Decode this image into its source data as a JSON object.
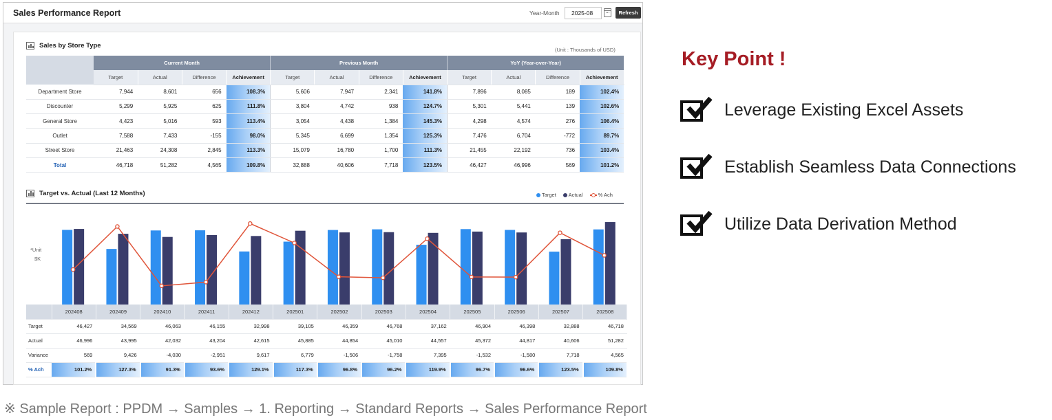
{
  "header": {
    "title": "Sales Performance Report",
    "ym_label": "Year-Month",
    "ym_value": "2025-08",
    "refresh_label": "Refresh"
  },
  "store_section": {
    "title": "Sales by Store Type",
    "unit": "(Unit : Thousands of USD)",
    "groups": [
      "Current Month",
      "Previous Month",
      "YoY (Year-over-Year)"
    ],
    "subheaders": [
      "Target",
      "Actual",
      "Difference",
      "Achievement"
    ],
    "rows": [
      {
        "label": "Department Store",
        "cells": [
          "7,944",
          "8,601",
          "656",
          "108.3%",
          "5,606",
          "7,947",
          "2,341",
          "141.8%",
          "7,896",
          "8,085",
          "189",
          "102.4%"
        ]
      },
      {
        "label": "Discounter",
        "cells": [
          "5,299",
          "5,925",
          "625",
          "111.8%",
          "3,804",
          "4,742",
          "938",
          "124.7%",
          "5,301",
          "5,441",
          "139",
          "102.6%"
        ]
      },
      {
        "label": "General Store",
        "cells": [
          "4,423",
          "5,016",
          "593",
          "113.4%",
          "3,054",
          "4,438",
          "1,384",
          "145.3%",
          "4,298",
          "4,574",
          "276",
          "106.4%"
        ]
      },
      {
        "label": "Outlet",
        "cells": [
          "7,588",
          "7,433",
          "-155",
          "98.0%",
          "5,345",
          "6,699",
          "1,354",
          "125.3%",
          "7,476",
          "6,704",
          "-772",
          "89.7%"
        ]
      },
      {
        "label": "Street Store",
        "cells": [
          "21,463",
          "24,308",
          "2,845",
          "113.3%",
          "15,079",
          "16,780",
          "1,700",
          "111.3%",
          "21,455",
          "22,192",
          "736",
          "103.4%"
        ]
      },
      {
        "label": "Total",
        "cells": [
          "46,718",
          "51,282",
          "4,565",
          "109.8%",
          "32,888",
          "40,606",
          "7,718",
          "123.5%",
          "46,427",
          "46,996",
          "569",
          "101.2%"
        ]
      }
    ]
  },
  "chart_section": {
    "title": "Target vs. Actual (Last 12 Months)",
    "unit_label": "*Unit",
    "unit_value": "$K",
    "legend": [
      "Target",
      "Actual",
      "% Ach"
    ],
    "colors": {
      "target": "#2f8ff0",
      "actual": "#3a3d6b",
      "ach": "#e0553a"
    }
  },
  "chart_data": {
    "type": "bar",
    "categories": [
      "202408",
      "202409",
      "202410",
      "202411",
      "202412",
      "202501",
      "202502",
      "202503",
      "202504",
      "202505",
      "202506",
      "202507",
      "202508"
    ],
    "series": [
      {
        "name": "Target",
        "values": [
          46427,
          34569,
          46063,
          46155,
          32998,
          39105,
          46359,
          46768,
          37162,
          46904,
          46398,
          32888,
          46718
        ]
      },
      {
        "name": "Actual",
        "values": [
          46996,
          43995,
          42032,
          43204,
          42615,
          45885,
          44854,
          45010,
          44557,
          45372,
          44817,
          40606,
          51282
        ]
      },
      {
        "name": "% Ach",
        "values": [
          101.2,
          127.3,
          91.3,
          93.6,
          129.1,
          117.3,
          96.8,
          96.2,
          119.9,
          96.7,
          96.6,
          123.5,
          109.8
        ]
      }
    ],
    "rows": [
      {
        "label": "Target",
        "values": [
          "46,427",
          "34,569",
          "46,063",
          "46,155",
          "32,998",
          "39,105",
          "46,359",
          "46,768",
          "37,162",
          "46,904",
          "46,398",
          "32,888",
          "46,718"
        ]
      },
      {
        "label": "Actual",
        "values": [
          "46,996",
          "43,995",
          "42,032",
          "43,204",
          "42,615",
          "45,885",
          "44,854",
          "45,010",
          "44,557",
          "45,372",
          "44,817",
          "40,606",
          "51,282"
        ]
      },
      {
        "label": "Variance",
        "values": [
          "569",
          "9,426",
          "-4,030",
          "-2,951",
          "9,617",
          "6,779",
          "-1,506",
          "-1,758",
          "7,395",
          "-1,532",
          "-1,580",
          "7,718",
          "4,565"
        ]
      },
      {
        "label": "% Ach",
        "values": [
          "101.2%",
          "127.3%",
          "91.3%",
          "93.6%",
          "129.1%",
          "117.3%",
          "96.8%",
          "96.2%",
          "119.9%",
          "96.7%",
          "96.6%",
          "123.5%",
          "109.8%"
        ]
      }
    ],
    "ylim": [
      0,
      55000
    ],
    "ach_lim": [
      85,
      135
    ],
    "legend_position": "top-right"
  },
  "key_point": {
    "title": "Key Point !",
    "items": [
      "Leverage Existing Excel Assets",
      "Establish Seamless Data Connections",
      "Utilize Data Derivation Method"
    ]
  },
  "footnote": "※ Sample Report : PPDM → Samples → 1. Reporting → Standard Reports → Sales Performance Report"
}
